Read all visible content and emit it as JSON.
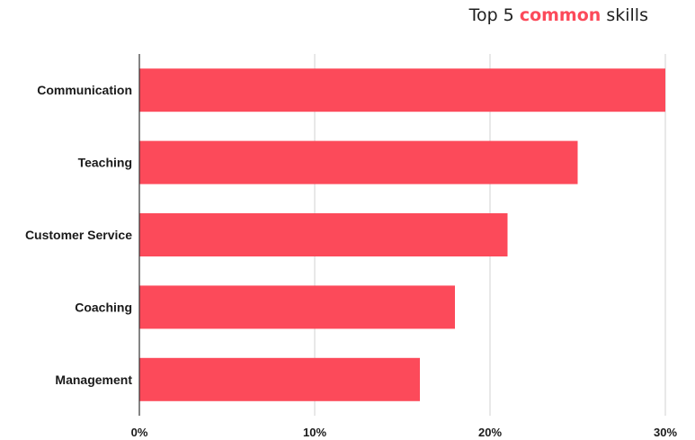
{
  "header": {
    "title_prefix": "Top 5 ",
    "title_highlight": "common",
    "title_suffix": " skills"
  },
  "colors": {
    "bar": "#fc4a5a",
    "highlight": "#fc4a5a",
    "gridline": "#d0d0d0",
    "axis": "#333333"
  },
  "chart_data": {
    "type": "bar",
    "orientation": "horizontal",
    "title": "Top 5 common skills",
    "categories": [
      "Communication",
      "Teaching",
      "Customer Service",
      "Coaching",
      "Management"
    ],
    "values": [
      30,
      25,
      21,
      18,
      16
    ],
    "value_unit": "%",
    "xlim": [
      0,
      30
    ],
    "xticks": [
      "0%",
      "10%",
      "20%",
      "30%"
    ],
    "grid": true,
    "legend": "none"
  }
}
